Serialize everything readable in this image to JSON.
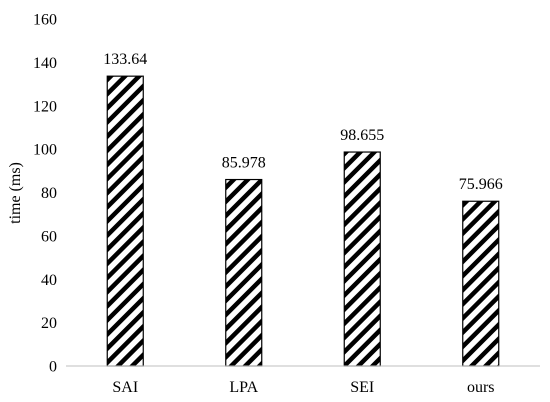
{
  "chart_data": {
    "type": "bar",
    "title": "",
    "xlabel": "",
    "ylabel": "time (ms)",
    "categories": [
      "SAI",
      "LPA",
      "SEI",
      "ours"
    ],
    "values": [
      133.64,
      85.978,
      98.655,
      75.966
    ],
    "data_labels": [
      "133.64",
      "85.978",
      "98.655",
      "75.966"
    ],
    "ylim": [
      0,
      160
    ],
    "yticks": [
      "0",
      "20",
      "40",
      "60",
      "80",
      "100",
      "120",
      "140",
      "160"
    ],
    "grid": false,
    "legend": "none",
    "bar_fill": "diagonal-hatch",
    "bar_stroke_color": "#000000",
    "axis_color": "#bfbfbf"
  }
}
